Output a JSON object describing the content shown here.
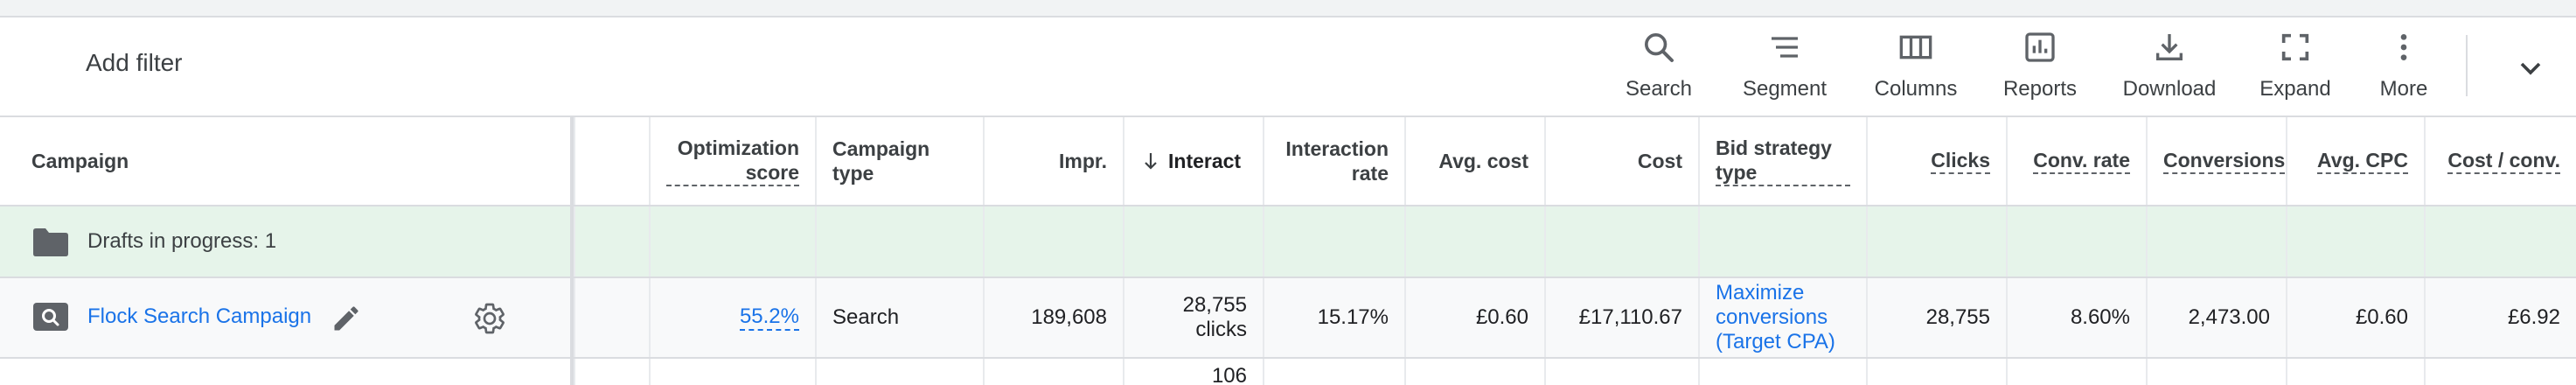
{
  "toolbar": {
    "add_filter": "Add filter",
    "tools": [
      {
        "label": "Search",
        "icon": "search-icon"
      },
      {
        "label": "Segment",
        "icon": "segment-icon"
      },
      {
        "label": "Columns",
        "icon": "columns-icon"
      },
      {
        "label": "Reports",
        "icon": "reports-icon"
      },
      {
        "label": "Download",
        "icon": "download-icon"
      },
      {
        "label": "Expand",
        "icon": "expand-icon"
      },
      {
        "label": "More",
        "icon": "more-vert-icon"
      }
    ]
  },
  "table": {
    "headers": {
      "campaign": "Campaign",
      "optimization_score": "Optimization score",
      "campaign_type": "Campaign type",
      "impr": "Impr.",
      "interactions": "Interact",
      "interaction_rate": "Interaction rate",
      "avg_cost": "Avg. cost",
      "cost": "Cost",
      "bid_strategy_type": "Bid strategy type",
      "clicks": "Clicks",
      "conv_rate": "Conv. rate",
      "conversions": "Conversions",
      "avg_cpc": "Avg. CPC",
      "cost_per_conv": "Cost / conv."
    },
    "drafts": {
      "label": "Drafts in progress: 1"
    },
    "campaign_row": {
      "name": "Flock Search Campaign",
      "optimization_score": "55.2%",
      "campaign_type": "Search",
      "impr": "189,608",
      "interactions": "28,755 clicks",
      "interaction_rate": "15.17%",
      "avg_cost": "£0.60",
      "cost": "£17,110.67",
      "bid_strategy_type": "Maximize conversions (Target CPA)",
      "clicks": "28,755",
      "conv_rate": "8.60%",
      "conversions": "2,473.00",
      "avg_cpc": "£0.60",
      "cost_per_conv": "£6.92"
    },
    "next_row": {
      "interactions_partial": "106"
    }
  },
  "colors": {
    "link": "#1a73e8",
    "draft_bg": "#e6f4ea",
    "border": "#dadce0"
  }
}
